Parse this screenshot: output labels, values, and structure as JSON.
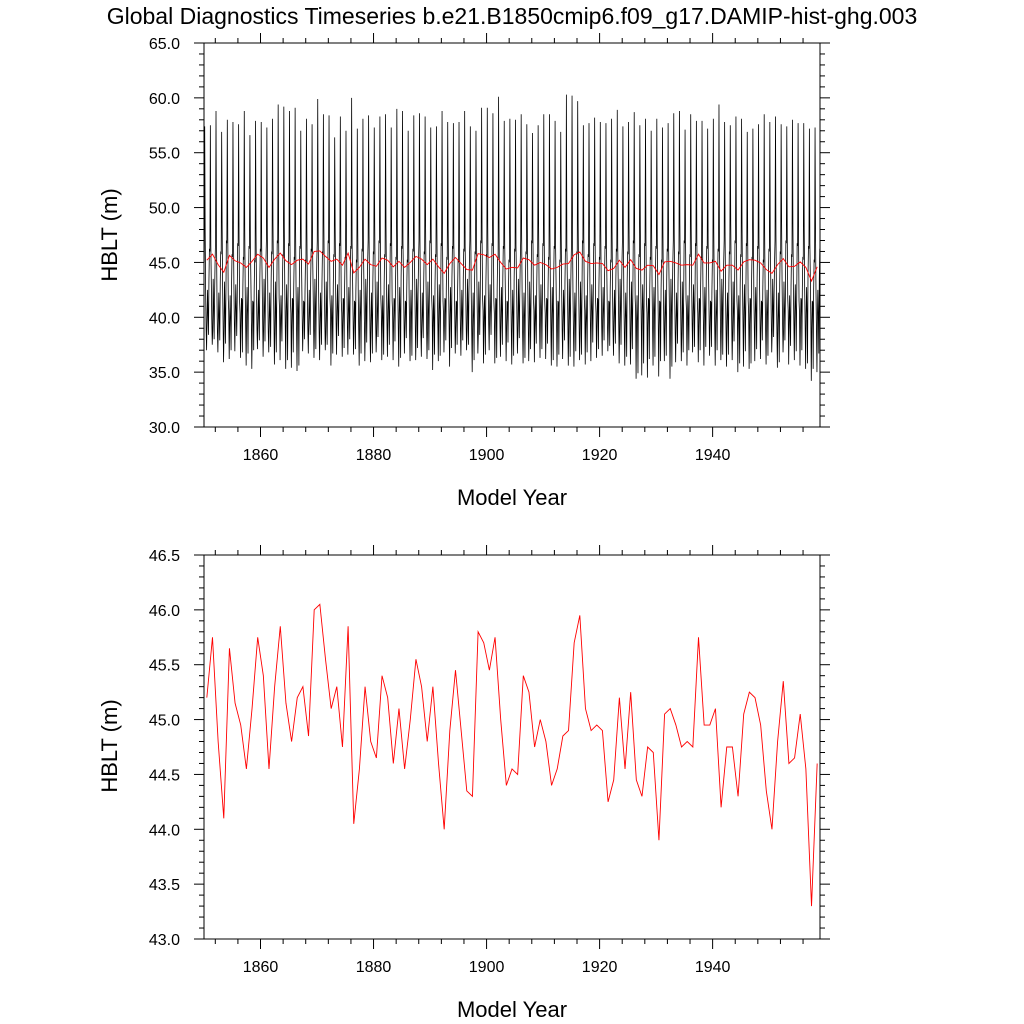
{
  "title": "Global Diagnostics Timeseries b.e21.B1850cmip6.f09_g17.DAMIP-hist-ghg.003",
  "colors": {
    "monthly": "#000000",
    "annual": "#ff0000",
    "frame": "#000000"
  },
  "chart_data": [
    {
      "type": "line",
      "xlabel": "Model Year",
      "ylabel": "HBLT (m)",
      "xlim": [
        1850,
        1959
      ],
      "ylim": [
        30.0,
        65.0
      ],
      "xticks": [
        1860,
        1880,
        1900,
        1920,
        1940
      ],
      "xtick_labels": [
        "1860",
        "1880",
        "1900",
        "1920",
        "1940"
      ],
      "yticks": [
        30,
        35,
        40,
        45,
        50,
        55,
        60,
        65
      ],
      "ytick_labels": [
        "30.0",
        "35.0",
        "40.0",
        "45.0",
        "50.0",
        "55.0",
        "60.0",
        "65.0"
      ],
      "grid": false,
      "series": [
        {
          "id": "monthly",
          "color": "#000000",
          "monthly_pattern": [
            46.0,
            57.7,
            47.5,
            42.5,
            39.6,
            37.8,
            39.5,
            42.5,
            40.6,
            37.9,
            42.6,
            46.0
          ],
          "yearly_max": [
            57.4,
            57.5,
            58.8,
            56.9,
            58.0,
            57.8,
            57.6,
            58.8,
            56.6,
            57.9,
            57.8,
            57.3,
            58.1,
            59.4,
            59.2,
            58.8,
            59.1,
            57.0,
            58.1,
            57.6,
            59.9,
            58.5,
            58.4,
            56.4,
            58.3,
            57.0,
            60.0,
            57.2,
            58.1,
            58.4,
            57.3,
            58.3,
            58.5,
            57.3,
            59.0,
            58.8,
            57.0,
            58.4,
            58.6,
            58.3,
            57.3,
            57.4,
            58.8,
            57.8,
            57.7,
            57.8,
            58.8,
            57.4,
            57.0,
            59.1,
            59.1,
            58.6,
            60.1,
            57.9,
            58.1,
            58.0,
            58.5,
            57.6,
            56.8,
            57.5,
            58.5,
            58.5,
            57.9,
            56.9,
            60.3,
            60.2,
            59.7,
            57.5,
            57.7,
            58.2,
            57.8,
            57.7,
            58.1,
            58.9,
            57.4,
            57.8,
            58.7,
            57.5,
            58.1,
            57.0,
            58.1,
            57.3,
            57.7,
            58.6,
            58.8,
            57.1,
            58.5,
            57.9,
            57.9,
            57.2,
            58.1,
            59.4,
            57.8,
            57.5,
            58.3,
            58.1,
            56.9,
            57.2,
            57.6,
            58.5,
            57.8,
            58.3,
            57.6,
            57.4,
            58.0,
            57.7,
            57.7,
            57.2,
            57.3
          ],
          "yearly_min": [
            37.0,
            37.5,
            36.8,
            35.9,
            36.2,
            36.9,
            36.3,
            35.6,
            35.3,
            37.1,
            36.4,
            36.8,
            35.7,
            36.1,
            35.3,
            35.4,
            35.1,
            36.9,
            36.7,
            36.3,
            36.1,
            37.0,
            35.6,
            36.6,
            36.4,
            36.6,
            36.6,
            35.6,
            36.0,
            35.9,
            36.8,
            36.1,
            36.4,
            36.1,
            35.5,
            36.7,
            36.0,
            36.1,
            36.4,
            36.2,
            35.2,
            36.0,
            36.8,
            35.5,
            36.7,
            36.5,
            37.0,
            35.0,
            36.7,
            35.8,
            37.0,
            35.8,
            36.4,
            36.0,
            35.7,
            36.7,
            35.8,
            36.0,
            35.9,
            36.3,
            36.2,
            35.6,
            35.5,
            36.2,
            35.6,
            35.5,
            36.1,
            35.7,
            36.0,
            36.3,
            36.5,
            36.9,
            36.5,
            35.8,
            35.6,
            35.7,
            34.4,
            34.7,
            34.5,
            35.6,
            34.6,
            36.0,
            34.4,
            35.9,
            36.0,
            35.6,
            36.8,
            35.9,
            35.6,
            36.5,
            35.6,
            36.1,
            35.5,
            36.1,
            35.0,
            35.5,
            35.3,
            36.0,
            36.2,
            35.7,
            36.8,
            35.4,
            36.8,
            35.7,
            36.1,
            35.6,
            35.3,
            34.2,
            35.0
          ]
        },
        {
          "id": "annual",
          "color": "#ff0000",
          "x_start": 1850.5,
          "x_step": 1,
          "values": [
            45.2,
            45.75,
            44.8,
            44.1,
            45.65,
            45.15,
            44.95,
            44.55,
            45.1,
            45.75,
            45.4,
            44.55,
            45.3,
            45.85,
            45.15,
            44.8,
            45.2,
            45.3,
            44.85,
            46.0,
            46.05,
            45.55,
            45.1,
            45.3,
            44.75,
            45.85,
            44.05,
            44.55,
            45.3,
            44.8,
            44.65,
            45.4,
            45.2,
            44.6,
            45.1,
            44.55,
            45.0,
            45.55,
            45.3,
            44.8,
            45.3,
            44.6,
            44.0,
            44.9,
            45.45,
            44.9,
            44.35,
            44.3,
            45.8,
            45.7,
            45.45,
            45.75,
            45.0,
            44.4,
            44.55,
            44.5,
            45.4,
            45.25,
            44.75,
            45.0,
            44.8,
            44.4,
            44.55,
            44.85,
            44.9,
            45.7,
            45.95,
            45.1,
            44.9,
            44.95,
            44.9,
            44.25,
            44.45,
            45.2,
            44.55,
            45.25,
            44.45,
            44.3,
            44.75,
            44.7,
            43.9,
            45.05,
            45.1,
            44.95,
            44.75,
            44.8,
            44.75,
            45.75,
            44.95,
            44.95,
            45.1,
            44.2,
            44.75,
            44.75,
            44.3,
            45.05,
            45.25,
            45.2,
            44.95,
            44.35,
            44.0,
            44.8,
            45.35,
            44.6,
            44.65,
            45.05,
            44.55,
            43.3,
            44.6
          ]
        }
      ]
    },
    {
      "type": "line",
      "xlabel": "Model Year",
      "ylabel": "HBLT (m)",
      "xlim": [
        1850,
        1959
      ],
      "ylim": [
        43.0,
        46.5
      ],
      "xticks": [
        1860,
        1880,
        1900,
        1920,
        1940
      ],
      "xtick_labels": [
        "1860",
        "1880",
        "1900",
        "1920",
        "1940"
      ],
      "yticks": [
        43.0,
        43.5,
        44.0,
        44.5,
        45.0,
        45.5,
        46.0,
        46.5
      ],
      "ytick_labels": [
        "43.0",
        "43.5",
        "44.0",
        "44.5",
        "45.0",
        "45.5",
        "46.0",
        "46.5"
      ],
      "grid": false,
      "series": [
        {
          "id": "annual",
          "color": "#ff0000",
          "x_start": 1850.5,
          "x_step": 1,
          "same_as": "annual"
        }
      ]
    }
  ]
}
